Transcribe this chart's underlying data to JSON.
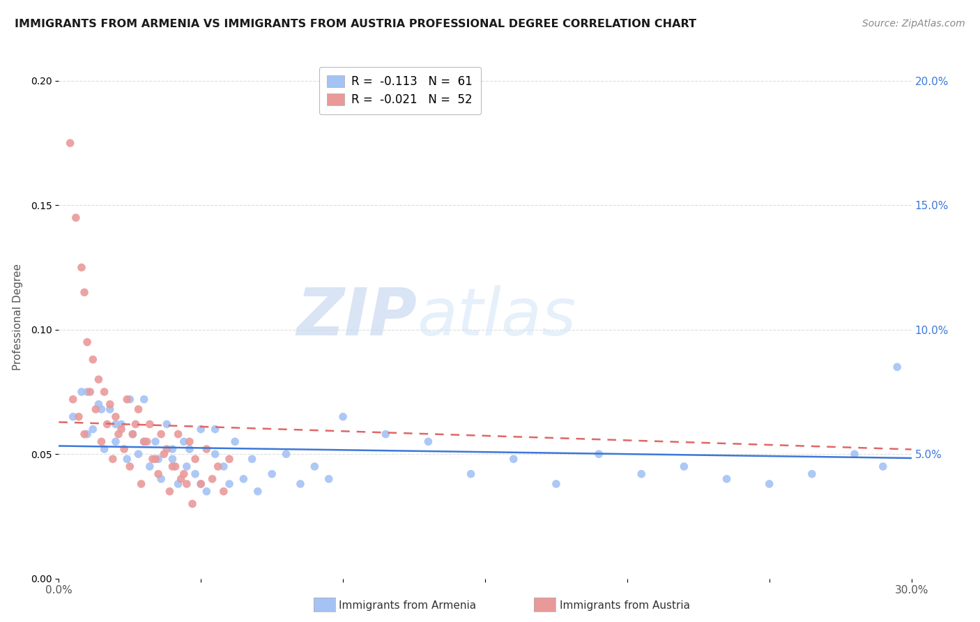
{
  "title": "IMMIGRANTS FROM ARMENIA VS IMMIGRANTS FROM AUSTRIA PROFESSIONAL DEGREE CORRELATION CHART",
  "source": "Source: ZipAtlas.com",
  "ylabel": "Professional Degree",
  "x_min": 0.0,
  "x_max": 0.3,
  "y_min": 0.0,
  "y_max": 0.21,
  "y_ticks_right": [
    0.05,
    0.1,
    0.15,
    0.2
  ],
  "y_tick_labels_right": [
    "5.0%",
    "10.0%",
    "15.0%",
    "20.0%"
  ],
  "armenia_color": "#a4c2f4",
  "austria_color": "#ea9999",
  "armenia_line_color": "#3c78d8",
  "austria_line_color": "#e06666",
  "legend_armenia": "R =  -0.113   N =  61",
  "legend_austria": "R =  -0.021   N =  52",
  "watermark_ZIP": "ZIP",
  "watermark_atlas": "atlas",
  "background_color": "#ffffff",
  "grid_color": "#dddddd",
  "armenia_R": -0.113,
  "armenia_N": 61,
  "austria_R": -0.021,
  "austria_N": 52,
  "armenia_scatter_x": [
    0.005,
    0.008,
    0.01,
    0.012,
    0.014,
    0.016,
    0.018,
    0.02,
    0.022,
    0.024,
    0.026,
    0.028,
    0.03,
    0.032,
    0.034,
    0.036,
    0.038,
    0.04,
    0.042,
    0.044,
    0.046,
    0.048,
    0.05,
    0.052,
    0.055,
    0.058,
    0.06,
    0.062,
    0.065,
    0.068,
    0.07,
    0.075,
    0.08,
    0.085,
    0.09,
    0.095,
    0.01,
    0.015,
    0.02,
    0.025,
    0.03,
    0.035,
    0.04,
    0.045,
    0.05,
    0.055,
    0.1,
    0.115,
    0.13,
    0.145,
    0.16,
    0.175,
    0.19,
    0.205,
    0.22,
    0.235,
    0.25,
    0.265,
    0.28,
    0.29,
    0.295
  ],
  "armenia_scatter_y": [
    0.065,
    0.075,
    0.058,
    0.06,
    0.07,
    0.052,
    0.068,
    0.055,
    0.062,
    0.048,
    0.058,
    0.05,
    0.072,
    0.045,
    0.055,
    0.04,
    0.062,
    0.048,
    0.038,
    0.055,
    0.052,
    0.042,
    0.06,
    0.035,
    0.05,
    0.045,
    0.038,
    0.055,
    0.04,
    0.048,
    0.035,
    0.042,
    0.05,
    0.038,
    0.045,
    0.04,
    0.075,
    0.068,
    0.062,
    0.072,
    0.055,
    0.048,
    0.052,
    0.045,
    0.038,
    0.06,
    0.065,
    0.058,
    0.055,
    0.042,
    0.048,
    0.038,
    0.05,
    0.042,
    0.045,
    0.04,
    0.038,
    0.042,
    0.05,
    0.045,
    0.085
  ],
  "austria_scatter_x": [
    0.004,
    0.006,
    0.008,
    0.009,
    0.01,
    0.012,
    0.014,
    0.016,
    0.018,
    0.02,
    0.022,
    0.024,
    0.026,
    0.028,
    0.03,
    0.032,
    0.034,
    0.036,
    0.038,
    0.04,
    0.042,
    0.044,
    0.046,
    0.048,
    0.05,
    0.052,
    0.054,
    0.056,
    0.058,
    0.06,
    0.005,
    0.007,
    0.009,
    0.011,
    0.013,
    0.015,
    0.017,
    0.019,
    0.021,
    0.023,
    0.025,
    0.027,
    0.029,
    0.031,
    0.033,
    0.035,
    0.037,
    0.039,
    0.041,
    0.043,
    0.045,
    0.047
  ],
  "austria_scatter_y": [
    0.175,
    0.145,
    0.125,
    0.115,
    0.095,
    0.088,
    0.08,
    0.075,
    0.07,
    0.065,
    0.06,
    0.072,
    0.058,
    0.068,
    0.055,
    0.062,
    0.048,
    0.058,
    0.052,
    0.045,
    0.058,
    0.042,
    0.055,
    0.048,
    0.038,
    0.052,
    0.04,
    0.045,
    0.035,
    0.048,
    0.072,
    0.065,
    0.058,
    0.075,
    0.068,
    0.055,
    0.062,
    0.048,
    0.058,
    0.052,
    0.045,
    0.062,
    0.038,
    0.055,
    0.048,
    0.042,
    0.05,
    0.035,
    0.045,
    0.04,
    0.038,
    0.03
  ]
}
